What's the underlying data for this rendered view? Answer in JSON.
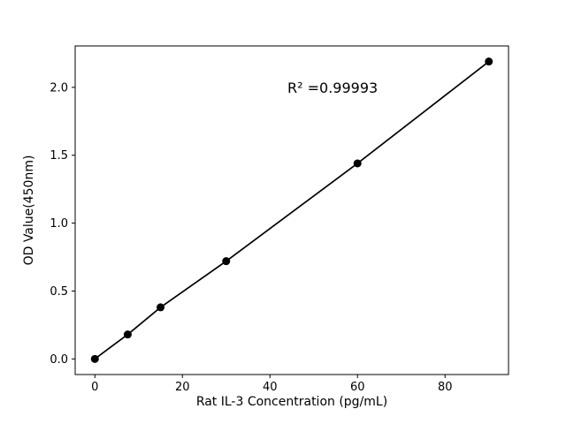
{
  "figure": {
    "background": "#ffffff"
  },
  "chart_data": {
    "type": "scatter",
    "title": "",
    "xlabel": "Rat IL-3 Concentration (pg/mL)",
    "ylabel": "OD Value(450nm)",
    "annotation": {
      "text": "R² =0.99993"
    },
    "series": [
      {
        "name": "standard-curve",
        "x": [
          0,
          7.5,
          15,
          30,
          60,
          90
        ],
        "y": [
          0.0,
          0.18,
          0.38,
          0.72,
          1.44,
          2.19
        ],
        "line_color": "#000000",
        "marker_color": "#000000"
      }
    ],
    "xlim": [
      -4.5,
      94.5
    ],
    "ylim": [
      -0.115,
      2.305
    ],
    "xticks": [
      0,
      20,
      40,
      60,
      80
    ],
    "xtick_labels": [
      "0",
      "20",
      "40",
      "60",
      "80"
    ],
    "yticks": [
      0.0,
      0.5,
      1.0,
      1.5,
      2.0
    ],
    "ytick_labels": [
      "0.0",
      "0.5",
      "1.0",
      "1.5",
      "2.0"
    ],
    "grid": false,
    "legend": "none",
    "axis_color": "#000000"
  }
}
